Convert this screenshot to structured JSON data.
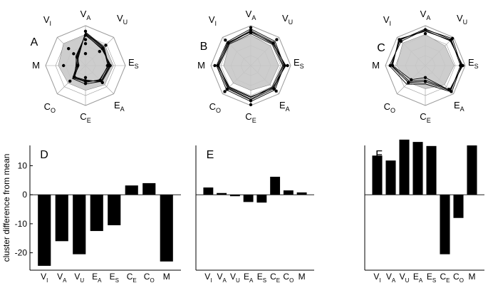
{
  "radar_panels": [
    {
      "panel_label": "A",
      "axis_labels": [
        {
          "main": "V",
          "sub": "A"
        },
        {
          "main": "V",
          "sub": "U"
        },
        {
          "main": "E",
          "sub": "S"
        },
        {
          "main": "E",
          "sub": "A"
        },
        {
          "main": "C",
          "sub": "E"
        },
        {
          "main": "C",
          "sub": "O"
        },
        {
          "main": "M",
          "sub": ""
        },
        {
          "main": "V",
          "sub": "I"
        }
      ],
      "mean_profile": [
        0.78,
        0.7,
        0.7,
        0.68,
        0.62,
        0.62,
        0.68,
        0.78
      ],
      "cluster_profiles": [
        [
          0.8,
          0.62,
          0.6,
          0.55,
          0.38,
          0.42,
          0.2,
          0.3
        ],
        [
          0.84,
          0.66,
          0.58,
          0.5,
          0.42,
          0.38,
          0.18,
          0.26
        ],
        [
          0.76,
          0.6,
          0.62,
          0.56,
          0.46,
          0.46,
          0.22,
          0.34
        ],
        [
          0.82,
          0.64,
          0.56,
          0.52,
          0.4,
          0.44,
          0.16,
          0.28
        ],
        [
          0.78,
          0.58,
          0.64,
          0.58,
          0.36,
          0.4,
          0.24,
          0.32
        ]
      ],
      "dot_points": [
        [
          0,
          0.86
        ],
        [
          0,
          0.76
        ],
        [
          0,
          0.65
        ],
        [
          0,
          0.55
        ],
        [
          0,
          0.3
        ],
        [
          1,
          0.72
        ],
        [
          1,
          0.6
        ],
        [
          1,
          0.5
        ],
        [
          2,
          0.62
        ],
        [
          2,
          0.58
        ],
        [
          2,
          0.55
        ],
        [
          3,
          0.6
        ],
        [
          3,
          0.52
        ],
        [
          4,
          0.45
        ],
        [
          4,
          0.38
        ],
        [
          4,
          0.3
        ],
        [
          5,
          0.55
        ],
        [
          5,
          0.4
        ],
        [
          6,
          0.55
        ],
        [
          6,
          0.2
        ],
        [
          7,
          0.6
        ],
        [
          7,
          0.42
        ],
        [
          7,
          0.3
        ]
      ]
    },
    {
      "panel_label": "B",
      "axis_labels": [
        {
          "main": "V",
          "sub": "A"
        },
        {
          "main": "V",
          "sub": "U"
        },
        {
          "main": "E",
          "sub": "S"
        },
        {
          "main": "E",
          "sub": "A"
        },
        {
          "main": "C",
          "sub": "E"
        },
        {
          "main": "C",
          "sub": "O"
        },
        {
          "main": "M",
          "sub": ""
        },
        {
          "main": "V",
          "sub": "I"
        }
      ],
      "mean_profile": [
        0.76,
        0.7,
        0.7,
        0.68,
        0.62,
        0.62,
        0.68,
        0.76
      ],
      "cluster_profiles": [
        [
          0.88,
          0.82,
          0.86,
          0.82,
          0.86,
          0.82,
          0.84,
          0.8
        ],
        [
          0.8,
          0.76,
          0.8,
          0.76,
          0.8,
          0.78,
          0.8,
          0.76
        ],
        [
          0.92,
          0.86,
          0.84,
          0.86,
          0.9,
          0.86,
          0.86,
          0.84
        ],
        [
          0.84,
          0.8,
          0.82,
          0.8,
          0.78,
          0.76,
          0.82,
          0.82
        ],
        [
          0.86,
          0.78,
          0.88,
          0.78,
          0.84,
          0.8,
          0.8,
          0.78
        ]
      ],
      "dot_points": [
        [
          0,
          0.95
        ],
        [
          0,
          0.88
        ],
        [
          0,
          0.82
        ],
        [
          1,
          0.92
        ],
        [
          1,
          0.8
        ],
        [
          2,
          0.92
        ],
        [
          2,
          0.85
        ],
        [
          3,
          0.9
        ],
        [
          3,
          0.82
        ],
        [
          4,
          0.98
        ],
        [
          4,
          0.88
        ],
        [
          5,
          0.92
        ],
        [
          5,
          0.84
        ],
        [
          6,
          0.9
        ],
        [
          6,
          0.82
        ],
        [
          7,
          0.9
        ],
        [
          7,
          0.8
        ]
      ]
    },
    {
      "panel_label": "C",
      "axis_labels": [
        {
          "main": "V",
          "sub": "A"
        },
        {
          "main": "V",
          "sub": "U"
        },
        {
          "main": "E",
          "sub": "S"
        },
        {
          "main": "E",
          "sub": "A"
        },
        {
          "main": "C",
          "sub": "E"
        },
        {
          "main": "C",
          "sub": "O"
        },
        {
          "main": "M",
          "sub": ""
        },
        {
          "main": "V",
          "sub": "I"
        }
      ],
      "mean_profile": [
        0.78,
        0.7,
        0.72,
        0.68,
        0.58,
        0.6,
        0.72,
        0.8
      ],
      "cluster_profiles": [
        [
          0.92,
          0.92,
          0.88,
          0.9,
          0.4,
          0.6,
          0.86,
          0.9
        ],
        [
          0.86,
          0.9,
          0.92,
          0.88,
          0.3,
          0.5,
          0.82,
          0.94
        ],
        [
          0.9,
          0.96,
          0.9,
          0.94,
          0.46,
          0.66,
          0.9,
          0.86
        ],
        [
          0.88,
          0.88,
          0.94,
          0.86,
          0.36,
          0.56,
          0.84,
          0.92
        ]
      ],
      "dot_points": [
        [
          0,
          0.9
        ],
        [
          0,
          0.8
        ],
        [
          1,
          0.96
        ],
        [
          1,
          0.9
        ],
        [
          2,
          0.94
        ],
        [
          2,
          0.88
        ],
        [
          3,
          0.92
        ],
        [
          3,
          0.84
        ],
        [
          4,
          0.4
        ],
        [
          4,
          0.3
        ],
        [
          5,
          0.6
        ],
        [
          5,
          0.5
        ],
        [
          6,
          0.88
        ],
        [
          6,
          0.82
        ],
        [
          7,
          0.92
        ],
        [
          7,
          0.86
        ]
      ]
    }
  ],
  "chart_data": [
    {
      "type": "bar",
      "panel_label": "D",
      "ylabel": "cluster difference from mean",
      "ylim": [
        -26,
        17
      ],
      "yticks": [
        -20,
        -10,
        0,
        10
      ],
      "categories": [
        {
          "main": "V",
          "sub": "I"
        },
        {
          "main": "V",
          "sub": "A"
        },
        {
          "main": "V",
          "sub": "U"
        },
        {
          "main": "E",
          "sub": "A"
        },
        {
          "main": "E",
          "sub": "S"
        },
        {
          "main": "C",
          "sub": "E"
        },
        {
          "main": "C",
          "sub": "O"
        },
        {
          "main": "M",
          "sub": ""
        }
      ],
      "values": [
        -24.5,
        -16,
        -20.5,
        -12.5,
        -10.5,
        3.2,
        4,
        -23
      ],
      "bar_color": "#000000"
    },
    {
      "type": "bar",
      "panel_label": "E",
      "ylim": [
        -26,
        17
      ],
      "categories": [
        {
          "main": "V",
          "sub": "I"
        },
        {
          "main": "V",
          "sub": "A"
        },
        {
          "main": "V",
          "sub": "U"
        },
        {
          "main": "E",
          "sub": "A"
        },
        {
          "main": "E",
          "sub": "S"
        },
        {
          "main": "C",
          "sub": "E"
        },
        {
          "main": "C",
          "sub": "O"
        },
        {
          "main": "M",
          "sub": ""
        }
      ],
      "values": [
        2.5,
        0.6,
        -0.5,
        -2.5,
        -2.7,
        6.2,
        1.5,
        0.8
      ],
      "bar_color": "#000000"
    },
    {
      "type": "bar",
      "panel_label": "F",
      "ylim": [
        -26,
        17
      ],
      "categories": [
        {
          "main": "V",
          "sub": "I"
        },
        {
          "main": "V",
          "sub": "A"
        },
        {
          "main": "V",
          "sub": "U"
        },
        {
          "main": "E",
          "sub": "A"
        },
        {
          "main": "E",
          "sub": "S"
        },
        {
          "main": "C",
          "sub": "E"
        },
        {
          "main": "C",
          "sub": "O"
        },
        {
          "main": "M",
          "sub": ""
        }
      ],
      "values": [
        13.5,
        11.8,
        19,
        18.2,
        16.8,
        -20.5,
        -8,
        17
      ],
      "bar_color": "#000000"
    }
  ],
  "colors": {
    "mean_fill": "#c8c8c8",
    "grid": "#9a9a9a",
    "lines": "#000000"
  }
}
